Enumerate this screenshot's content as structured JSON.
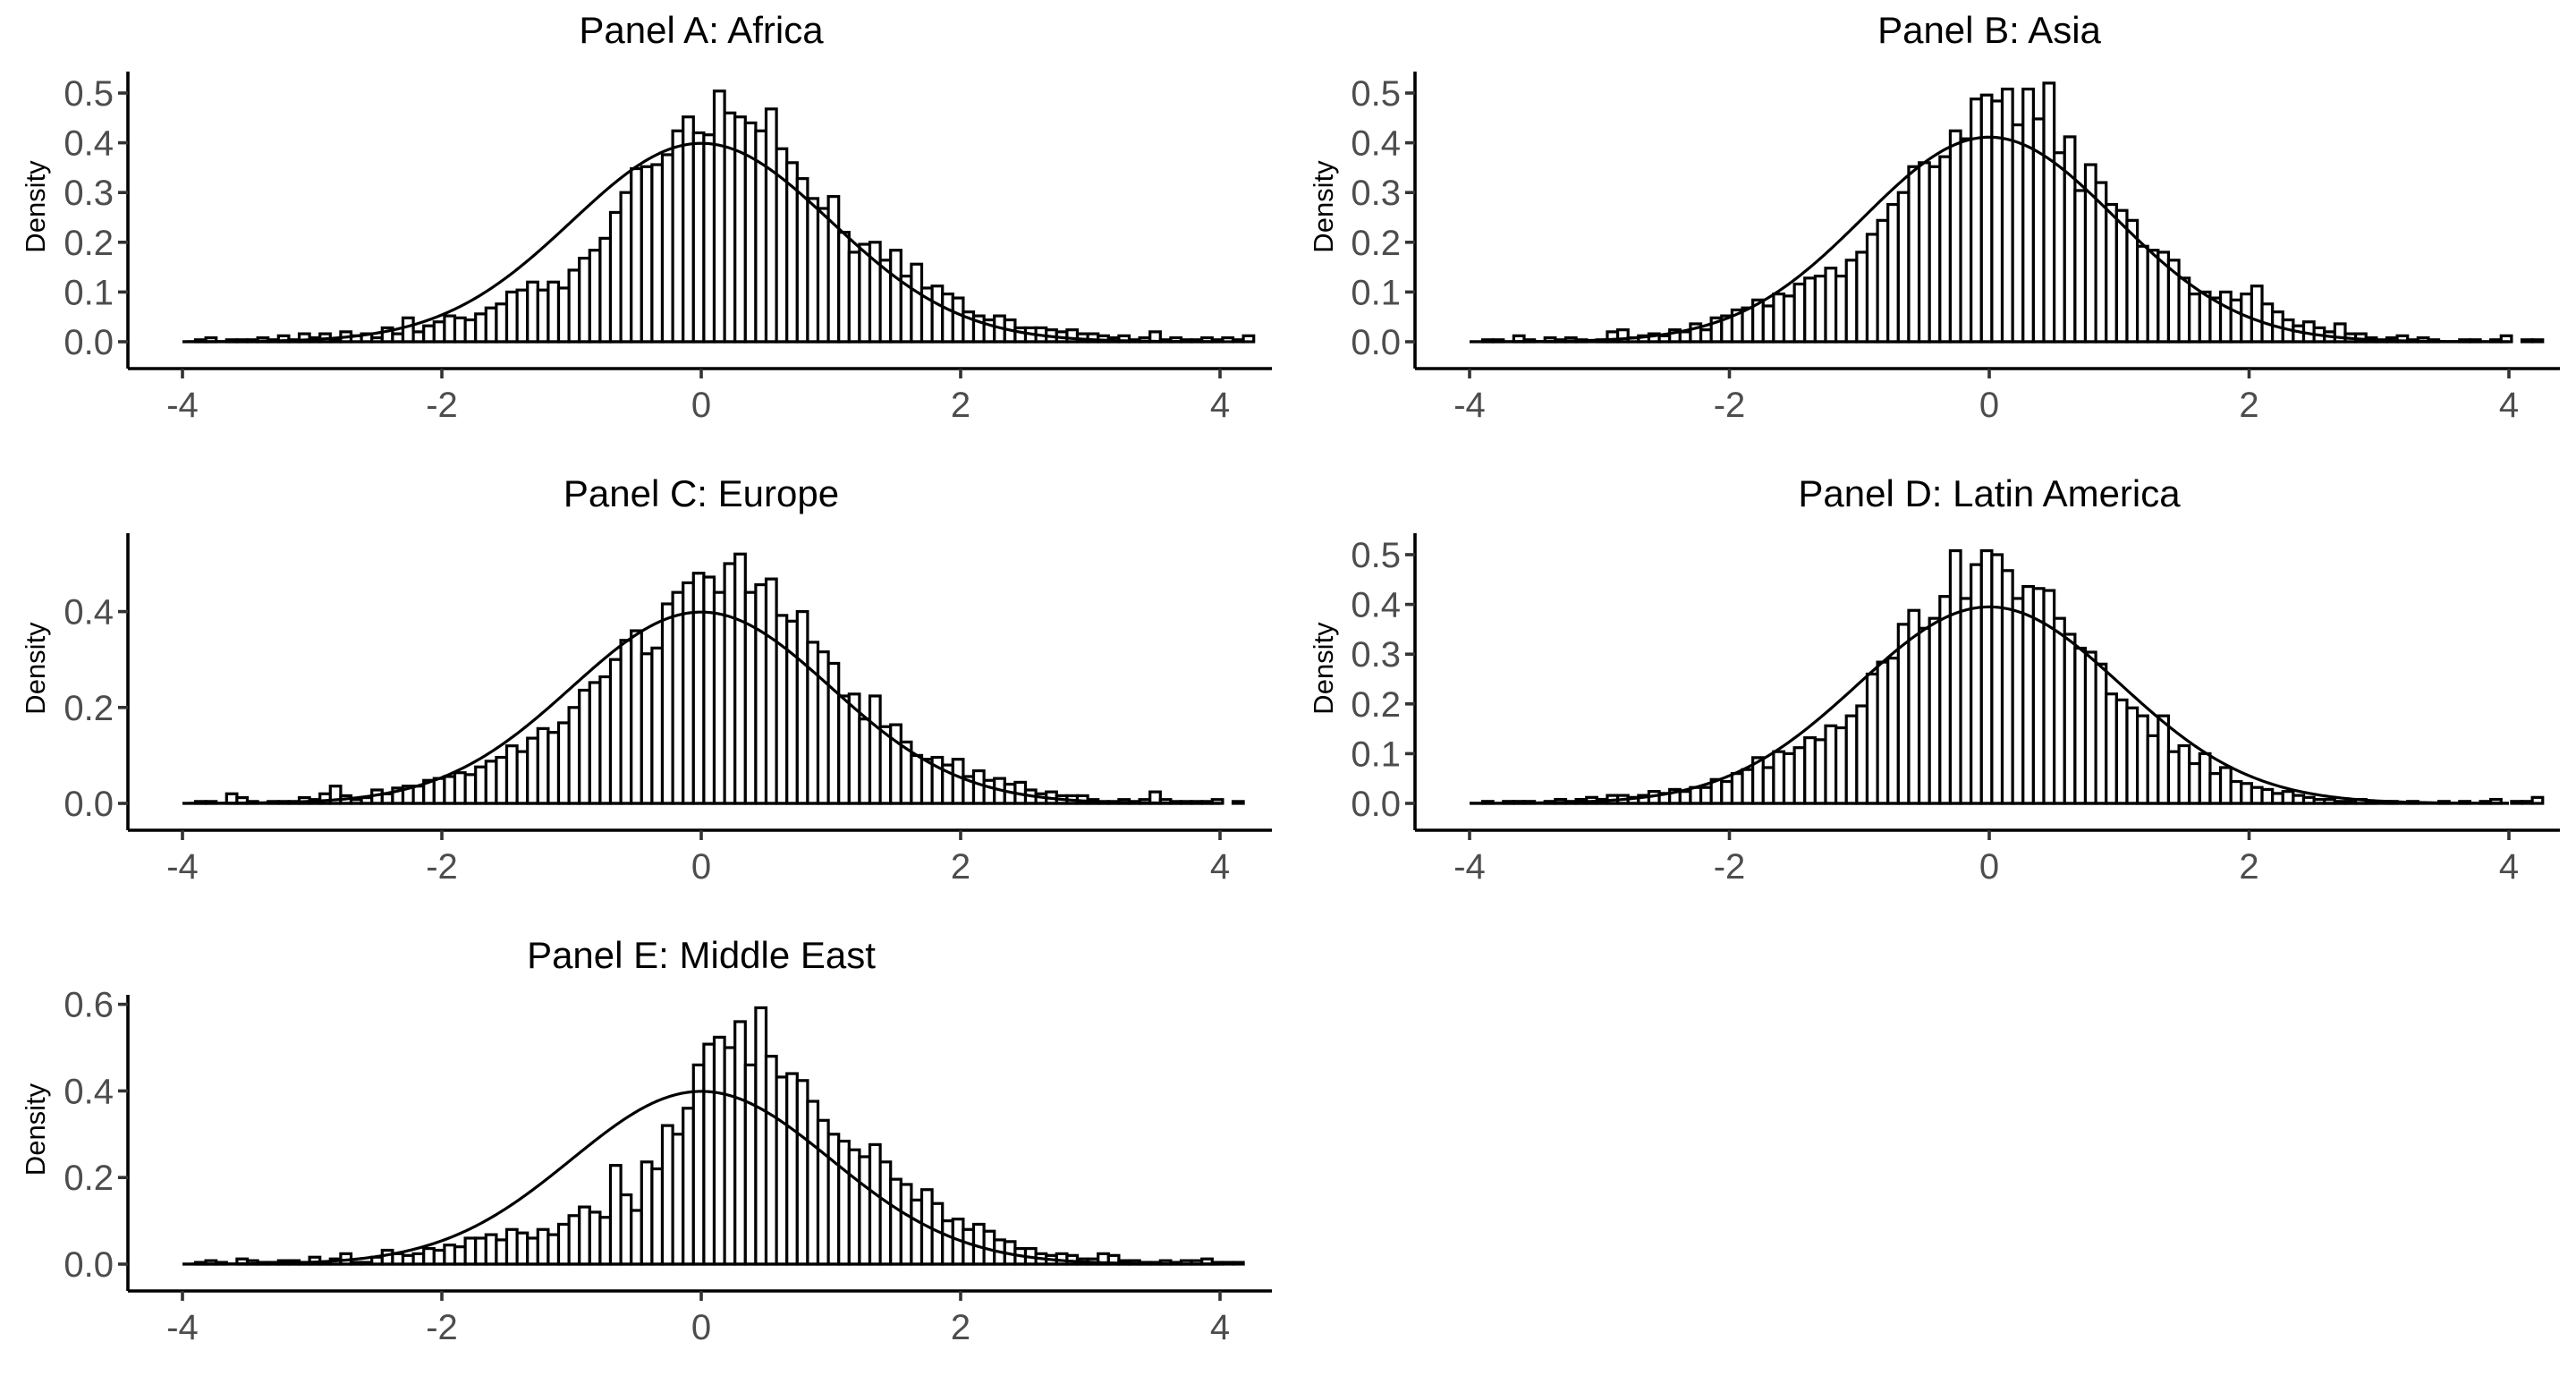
{
  "chart_data": [
    {
      "type": "bar",
      "title": "Panel A: Africa",
      "ylabel": "Density",
      "xlim": [
        -4,
        4
      ],
      "ylim": [
        0,
        0.53
      ],
      "xticks": [
        -4,
        -2,
        0,
        2,
        4
      ],
      "yticks": [
        0,
        0.1,
        0.2,
        0.3,
        0.4,
        0.5
      ],
      "ytick_labels": [
        "0.0",
        "0.1",
        "0.2",
        "0.3",
        "0.4",
        "0.5"
      ],
      "bin_start": -3.9,
      "bin_width": 0.08,
      "values": [
        0.004,
        0.008,
        0.0,
        0.004,
        0.004,
        0.004,
        0.008,
        0.004,
        0.012,
        0.004,
        0.016,
        0.008,
        0.016,
        0.004,
        0.02,
        0.012,
        0.016,
        0.008,
        0.028,
        0.016,
        0.048,
        0.02,
        0.032,
        0.04,
        0.052,
        0.048,
        0.044,
        0.056,
        0.068,
        0.076,
        0.1,
        0.104,
        0.12,
        0.104,
        0.12,
        0.108,
        0.144,
        0.168,
        0.184,
        0.208,
        0.26,
        0.3,
        0.348,
        0.352,
        0.356,
        0.376,
        0.424,
        0.452,
        0.42,
        0.416,
        0.504,
        0.46,
        0.452,
        0.44,
        0.424,
        0.468,
        0.388,
        0.36,
        0.328,
        0.288,
        0.268,
        0.292,
        0.22,
        0.18,
        0.196,
        0.2,
        0.164,
        0.184,
        0.132,
        0.156,
        0.108,
        0.112,
        0.096,
        0.088,
        0.06,
        0.052,
        0.044,
        0.052,
        0.044,
        0.028,
        0.028,
        0.028,
        0.024,
        0.02,
        0.024,
        0.016,
        0.016,
        0.012,
        0.008,
        0.012,
        0.004,
        0.008,
        0.02,
        0.004,
        0.008,
        0.004,
        0.004,
        0.008,
        0.004,
        0.008,
        0.004,
        0.012
      ],
      "curve": {
        "mean": 0,
        "sd": 1
      }
    },
    {
      "type": "bar",
      "title": "Panel B: Asia",
      "ylabel": "Density",
      "xlim": [
        -4,
        4
      ],
      "ylim": [
        0,
        0.53
      ],
      "xticks": [
        -4,
        -2,
        0,
        2,
        4
      ],
      "yticks": [
        0,
        0.1,
        0.2,
        0.3,
        0.4,
        0.5
      ],
      "ytick_labels": [
        "0.0",
        "0.1",
        "0.2",
        "0.3",
        "0.4",
        "0.5"
      ],
      "bin_start": -3.9,
      "bin_width": 0.08,
      "values": [
        0.004,
        0.004,
        0.0,
        0.012,
        0.004,
        0.0,
        0.008,
        0.004,
        0.008,
        0.004,
        0.0,
        0.004,
        0.02,
        0.024,
        0.008,
        0.012,
        0.016,
        0.012,
        0.024,
        0.02,
        0.036,
        0.024,
        0.048,
        0.052,
        0.064,
        0.068,
        0.084,
        0.072,
        0.096,
        0.092,
        0.116,
        0.128,
        0.132,
        0.148,
        0.132,
        0.164,
        0.18,
        0.216,
        0.244,
        0.276,
        0.3,
        0.352,
        0.36,
        0.352,
        0.372,
        0.424,
        0.408,
        0.488,
        0.496,
        0.484,
        0.508,
        0.436,
        0.508,
        0.448,
        0.52,
        0.38,
        0.412,
        0.304,
        0.356,
        0.32,
        0.276,
        0.264,
        0.244,
        0.192,
        0.184,
        0.18,
        0.164,
        0.128,
        0.096,
        0.1,
        0.088,
        0.1,
        0.084,
        0.096,
        0.112,
        0.076,
        0.06,
        0.044,
        0.032,
        0.04,
        0.028,
        0.02,
        0.036,
        0.016,
        0.016,
        0.008,
        0.004,
        0.008,
        0.012,
        0.004,
        0.008,
        0.004,
        0.0,
        0.0,
        0.004,
        0.004,
        0.0,
        0.004,
        0.012,
        0.0,
        0.004,
        0.004
      ],
      "curve": {
        "mean": 0,
        "sd": 0.97
      }
    },
    {
      "type": "bar",
      "title": "Panel C: Europe",
      "ylabel": "Density",
      "xlim": [
        -4,
        4
      ],
      "ylim": [
        0,
        0.55
      ],
      "xticks": [
        -4,
        -2,
        0,
        2,
        4
      ],
      "yticks": [
        0,
        0.2,
        0.4
      ],
      "ytick_labels": [
        "0.0",
        "0.2",
        "0.4"
      ],
      "bin_start": -3.9,
      "bin_width": 0.08,
      "values": [
        0.004,
        0.004,
        0.0,
        0.02,
        0.012,
        0.004,
        0.0,
        0.004,
        0.004,
        0.004,
        0.012,
        0.008,
        0.02,
        0.036,
        0.016,
        0.008,
        0.012,
        0.028,
        0.02,
        0.032,
        0.036,
        0.036,
        0.048,
        0.052,
        0.056,
        0.064,
        0.06,
        0.076,
        0.088,
        0.096,
        0.12,
        0.108,
        0.136,
        0.156,
        0.148,
        0.168,
        0.2,
        0.236,
        0.252,
        0.264,
        0.3,
        0.34,
        0.36,
        0.312,
        0.324,
        0.416,
        0.44,
        0.46,
        0.48,
        0.472,
        0.44,
        0.5,
        0.52,
        0.44,
        0.456,
        0.468,
        0.392,
        0.38,
        0.4,
        0.336,
        0.316,
        0.292,
        0.224,
        0.228,
        0.176,
        0.224,
        0.16,
        0.164,
        0.128,
        0.1,
        0.092,
        0.096,
        0.08,
        0.092,
        0.056,
        0.068,
        0.048,
        0.052,
        0.04,
        0.044,
        0.028,
        0.02,
        0.024,
        0.016,
        0.016,
        0.016,
        0.008,
        0.004,
        0.004,
        0.008,
        0.004,
        0.008,
        0.024,
        0.008,
        0.004,
        0.004,
        0.004,
        0.004,
        0.008,
        0.0,
        0.004,
        0.0
      ],
      "curve": {
        "mean": 0,
        "sd": 1
      }
    },
    {
      "type": "bar",
      "title": "Panel D: Latin America",
      "ylabel": "Density",
      "xlim": [
        -4,
        4
      ],
      "ylim": [
        0,
        0.53
      ],
      "xticks": [
        -4,
        -2,
        0,
        2,
        4
      ],
      "yticks": [
        0,
        0.1,
        0.2,
        0.3,
        0.4,
        0.5
      ],
      "ytick_labels": [
        "0.0",
        "0.1",
        "0.2",
        "0.3",
        "0.4",
        "0.5"
      ],
      "bin_start": -3.9,
      "bin_width": 0.08,
      "values": [
        0.004,
        0.0,
        0.004,
        0.004,
        0.004,
        0.0,
        0.004,
        0.008,
        0.004,
        0.008,
        0.012,
        0.008,
        0.016,
        0.016,
        0.012,
        0.016,
        0.024,
        0.02,
        0.028,
        0.024,
        0.032,
        0.032,
        0.048,
        0.044,
        0.06,
        0.068,
        0.092,
        0.072,
        0.104,
        0.1,
        0.112,
        0.132,
        0.128,
        0.156,
        0.152,
        0.176,
        0.196,
        0.26,
        0.284,
        0.292,
        0.36,
        0.388,
        0.352,
        0.372,
        0.416,
        0.508,
        0.412,
        0.48,
        0.508,
        0.5,
        0.468,
        0.412,
        0.436,
        0.432,
        0.428,
        0.372,
        0.34,
        0.312,
        0.304,
        0.28,
        0.22,
        0.208,
        0.192,
        0.176,
        0.136,
        0.176,
        0.104,
        0.116,
        0.08,
        0.1,
        0.06,
        0.072,
        0.044,
        0.04,
        0.032,
        0.028,
        0.02,
        0.024,
        0.016,
        0.012,
        0.008,
        0.008,
        0.004,
        0.004,
        0.008,
        0.004,
        0.0,
        0.004,
        0.0,
        0.004,
        0.0,
        0.0,
        0.004,
        0.0,
        0.004,
        0.0,
        0.004,
        0.008,
        0.0,
        0.004,
        0.004,
        0.012
      ],
      "curve": {
        "mean": 0,
        "sd": 1.01
      }
    },
    {
      "type": "bar",
      "title": "Panel E: Middle East",
      "ylabel": "Density",
      "xlim": [
        -4,
        4
      ],
      "ylim": [
        0,
        0.62
      ],
      "xticks": [
        -4,
        -2,
        0,
        2,
        4
      ],
      "yticks": [
        0,
        0.2,
        0.4,
        0.6
      ],
      "ytick_labels": [
        "0.0",
        "0.2",
        "0.4",
        "0.6"
      ],
      "bin_start": -3.9,
      "bin_width": 0.08,
      "values": [
        0.004,
        0.008,
        0.004,
        0.0,
        0.012,
        0.008,
        0.004,
        0.004,
        0.008,
        0.008,
        0.004,
        0.016,
        0.004,
        0.012,
        0.024,
        0.004,
        0.004,
        0.016,
        0.032,
        0.024,
        0.02,
        0.024,
        0.036,
        0.032,
        0.044,
        0.04,
        0.06,
        0.06,
        0.068,
        0.056,
        0.08,
        0.072,
        0.06,
        0.08,
        0.068,
        0.092,
        0.112,
        0.132,
        0.12,
        0.108,
        0.228,
        0.16,
        0.124,
        0.236,
        0.22,
        0.32,
        0.3,
        0.36,
        0.46,
        0.508,
        0.524,
        0.5,
        0.56,
        0.46,
        0.592,
        0.48,
        0.432,
        0.44,
        0.424,
        0.376,
        0.332,
        0.3,
        0.284,
        0.264,
        0.248,
        0.276,
        0.236,
        0.196,
        0.184,
        0.148,
        0.172,
        0.14,
        0.1,
        0.104,
        0.08,
        0.092,
        0.076,
        0.056,
        0.052,
        0.036,
        0.036,
        0.024,
        0.02,
        0.024,
        0.02,
        0.012,
        0.012,
        0.024,
        0.02,
        0.008,
        0.008,
        0.004,
        0.004,
        0.008,
        0.004,
        0.008,
        0.008,
        0.012,
        0.004,
        0.004,
        0.004,
        0.0
      ],
      "curve": {
        "mean": 0,
        "sd": 1
      }
    }
  ]
}
